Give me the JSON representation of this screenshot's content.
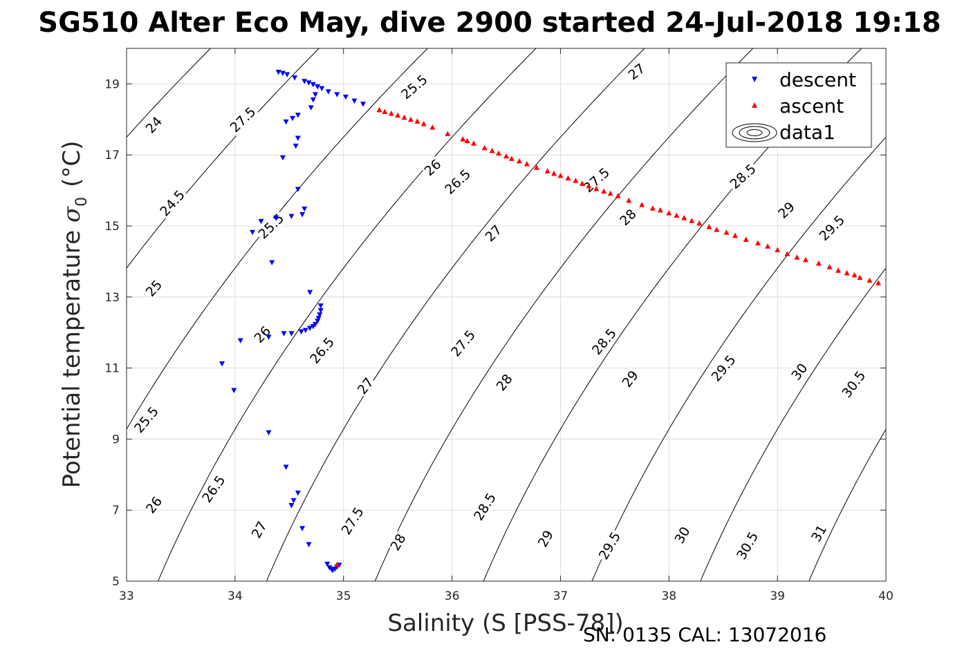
{
  "chart_data": {
    "type": "scatter",
    "title": "SG510 Alter Eco May, dive 2900 started 24-Jul-2018 19:18",
    "xlabel": "Salinity (S [PSS-78])",
    "ylabel": "Potential temperature",
    "ylabel_symbol": "σ",
    "ylabel_subscript": "0",
    "ylabel_unit": "(°C)",
    "xlim": [
      33,
      40
    ],
    "ylim": [
      5,
      20
    ],
    "x_ticks": [
      33,
      34,
      35,
      36,
      37,
      38,
      39,
      40
    ],
    "y_ticks": [
      5,
      7,
      9,
      11,
      13,
      15,
      17,
      19
    ],
    "grid": true,
    "legend_position": "top-right",
    "legend": [
      "descent",
      "ascent",
      "data1"
    ],
    "colors": {
      "descent": "#0000ff",
      "ascent": "#ff0000",
      "contour": "#000000"
    },
    "series": [
      {
        "name": "descent",
        "marker": "triangle-down",
        "points": [
          [
            34.4,
            19.33
          ],
          [
            34.44,
            19.3
          ],
          [
            34.48,
            19.26
          ],
          [
            34.55,
            19.17
          ],
          [
            34.64,
            19.07
          ],
          [
            34.68,
            19.03
          ],
          [
            34.72,
            18.98
          ],
          [
            34.76,
            18.92
          ],
          [
            34.8,
            18.87
          ],
          [
            34.86,
            18.78
          ],
          [
            34.94,
            18.7
          ],
          [
            35.02,
            18.63
          ],
          [
            35.1,
            18.52
          ],
          [
            35.18,
            18.43
          ],
          [
            34.74,
            18.7
          ],
          [
            34.72,
            18.55
          ],
          [
            34.7,
            18.33
          ],
          [
            34.58,
            18.12
          ],
          [
            34.53,
            18.03
          ],
          [
            34.47,
            17.93
          ],
          [
            34.58,
            17.47
          ],
          [
            34.56,
            17.25
          ],
          [
            34.44,
            16.92
          ],
          [
            34.58,
            16.03
          ],
          [
            34.64,
            15.48
          ],
          [
            34.62,
            15.32
          ],
          [
            34.52,
            15.27
          ],
          [
            34.38,
            15.23
          ],
          [
            34.24,
            15.13
          ],
          [
            34.16,
            14.82
          ],
          [
            34.34,
            13.97
          ],
          [
            34.69,
            13.13
          ],
          [
            34.79,
            12.75
          ],
          [
            34.79,
            12.62
          ],
          [
            34.78,
            12.5
          ],
          [
            34.77,
            12.4
          ],
          [
            34.76,
            12.32
          ],
          [
            34.74,
            12.23
          ],
          [
            34.72,
            12.17
          ],
          [
            34.69,
            12.12
          ],
          [
            34.65,
            12.06
          ],
          [
            34.61,
            12.02
          ],
          [
            34.52,
            11.97
          ],
          [
            34.45,
            11.97
          ],
          [
            34.31,
            11.87
          ],
          [
            34.05,
            11.77
          ],
          [
            33.88,
            11.12
          ],
          [
            33.99,
            10.37
          ],
          [
            34.31,
            9.18
          ],
          [
            34.47,
            8.21
          ],
          [
            34.58,
            7.48
          ],
          [
            34.54,
            7.27
          ],
          [
            34.52,
            7.13
          ],
          [
            34.62,
            6.48
          ],
          [
            34.68,
            6.03
          ],
          [
            34.85,
            5.48
          ],
          [
            34.87,
            5.38
          ],
          [
            34.89,
            5.33
          ],
          [
            34.9,
            5.3
          ],
          [
            34.92,
            5.34
          ],
          [
            34.94,
            5.4
          ],
          [
            34.96,
            5.45
          ]
        ]
      },
      {
        "name": "ascent",
        "marker": "triangle-up",
        "points": [
          [
            35.33,
            18.27
          ],
          [
            35.38,
            18.22
          ],
          [
            35.44,
            18.17
          ],
          [
            35.5,
            18.12
          ],
          [
            35.56,
            18.06
          ],
          [
            35.62,
            18.0
          ],
          [
            35.68,
            17.95
          ],
          [
            35.74,
            17.88
          ],
          [
            35.82,
            17.78
          ],
          [
            35.96,
            17.6
          ],
          [
            36.1,
            17.45
          ],
          [
            36.14,
            17.4
          ],
          [
            36.2,
            17.33
          ],
          [
            36.3,
            17.2
          ],
          [
            36.37,
            17.12
          ],
          [
            36.43,
            17.05
          ],
          [
            36.5,
            16.97
          ],
          [
            36.55,
            16.9
          ],
          [
            36.62,
            16.83
          ],
          [
            36.69,
            16.75
          ],
          [
            36.78,
            16.65
          ],
          [
            36.88,
            16.55
          ],
          [
            36.94,
            16.48
          ],
          [
            37.0,
            16.42
          ],
          [
            37.07,
            16.35
          ],
          [
            37.14,
            16.28
          ],
          [
            37.2,
            16.2
          ],
          [
            37.26,
            16.13
          ],
          [
            37.33,
            16.05
          ],
          [
            37.4,
            15.98
          ],
          [
            37.46,
            15.92
          ],
          [
            37.53,
            15.85
          ],
          [
            37.63,
            15.72
          ],
          [
            37.75,
            15.6
          ],
          [
            37.85,
            15.5
          ],
          [
            37.92,
            15.45
          ],
          [
            38.0,
            15.37
          ],
          [
            38.07,
            15.3
          ],
          [
            38.14,
            15.23
          ],
          [
            38.21,
            15.15
          ],
          [
            38.28,
            15.08
          ],
          [
            38.37,
            14.98
          ],
          [
            38.44,
            14.9
          ],
          [
            38.53,
            14.82
          ],
          [
            38.61,
            14.73
          ],
          [
            38.71,
            14.62
          ],
          [
            38.82,
            14.52
          ],
          [
            38.91,
            14.43
          ],
          [
            39.0,
            14.33
          ],
          [
            39.09,
            14.22
          ],
          [
            39.18,
            14.12
          ],
          [
            39.26,
            14.05
          ],
          [
            39.38,
            13.95
          ],
          [
            39.48,
            13.85
          ],
          [
            39.56,
            13.75
          ],
          [
            39.64,
            13.68
          ],
          [
            39.71,
            13.62
          ],
          [
            39.76,
            13.55
          ],
          [
            39.85,
            13.47
          ],
          [
            39.93,
            13.4
          ],
          [
            34.94,
            5.47
          ]
        ]
      }
    ],
    "contour_levels": [
      "24",
      "24.5",
      "25",
      "25.5",
      "26",
      "26.5",
      "27",
      "27.5",
      "28",
      "28.5",
      "29",
      "29.5",
      "30",
      "30.5",
      "31"
    ],
    "footer": "SN: 0135  CAL: 13072016"
  }
}
